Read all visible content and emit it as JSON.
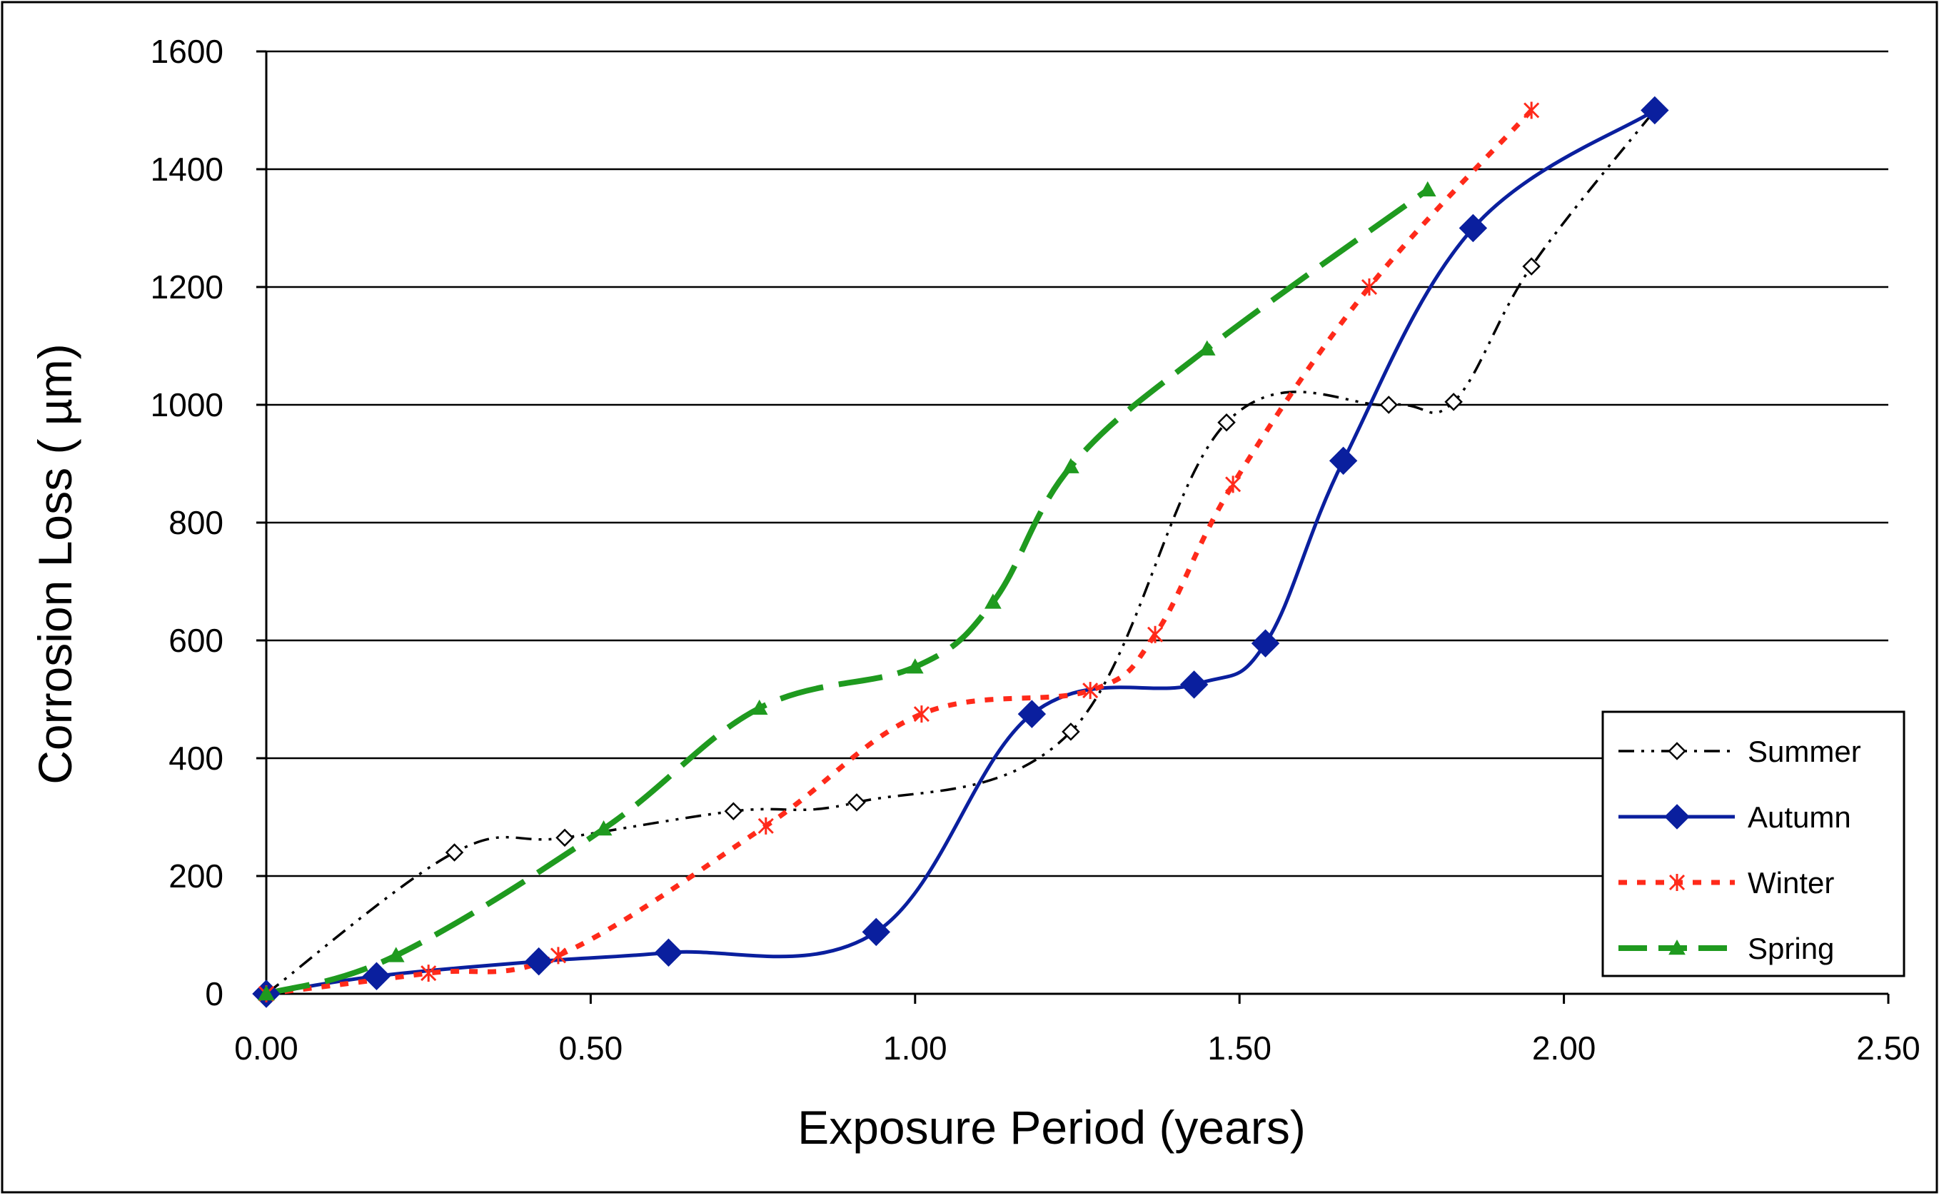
{
  "chart_data": {
    "type": "line",
    "title": "",
    "xlabel": "Exposure Period (years)",
    "ylabel": "Corrosion Loss ( µm)",
    "xlim": [
      0,
      2.5
    ],
    "ylim": [
      0,
      1600
    ],
    "x_ticks": [
      0,
      0.5,
      1.0,
      1.5,
      2.0,
      2.5
    ],
    "x_tick_labels": [
      "0.00",
      "0.50",
      "1.00",
      "1.50",
      "2.00",
      "2.50"
    ],
    "y_ticks": [
      0,
      200,
      400,
      600,
      800,
      1000,
      1200,
      1400,
      1600
    ],
    "y_tick_labels": [
      "0",
      "200",
      "400",
      "600",
      "800",
      "1000",
      "1200",
      "1400",
      "1600"
    ],
    "grid": "horizontal",
    "legend_position": "bottom-right",
    "series": [
      {
        "name": "Summer",
        "color": "#000000",
        "marker": "diamond-open",
        "line": "dash-dot-dot",
        "x": [
          0.0,
          0.29,
          0.46,
          0.72,
          0.91,
          1.24,
          1.48,
          1.73,
          1.83,
          1.95,
          2.14
        ],
        "y": [
          0,
          240,
          265,
          310,
          325,
          445,
          970,
          1000,
          1005,
          1235,
          1500
        ]
      },
      {
        "name": "Autumn",
        "color": "#0a1f9e",
        "marker": "diamond-filled",
        "line": "solid",
        "x": [
          0.0,
          0.17,
          0.42,
          0.62,
          0.94,
          1.18,
          1.43,
          1.54,
          1.66,
          1.86,
          2.14
        ],
        "y": [
          0,
          30,
          55,
          70,
          105,
          475,
          525,
          595,
          905,
          1300,
          1500
        ]
      },
      {
        "name": "Winter",
        "color": "#ff2a1a",
        "marker": "asterisk",
        "line": "dotted",
        "x": [
          0.0,
          0.25,
          0.45,
          0.77,
          1.01,
          1.27,
          1.37,
          1.49,
          1.7,
          1.95
        ],
        "y": [
          0,
          35,
          65,
          285,
          475,
          515,
          610,
          865,
          1200,
          1500
        ]
      },
      {
        "name": "Spring",
        "color": "#1f9a1f",
        "marker": "triangle",
        "line": "dashed",
        "x": [
          0.0,
          0.2,
          0.52,
          0.76,
          1.0,
          1.12,
          1.24,
          1.45,
          1.79
        ],
        "y": [
          0,
          65,
          280,
          485,
          555,
          665,
          895,
          1095,
          1365
        ]
      }
    ]
  }
}
